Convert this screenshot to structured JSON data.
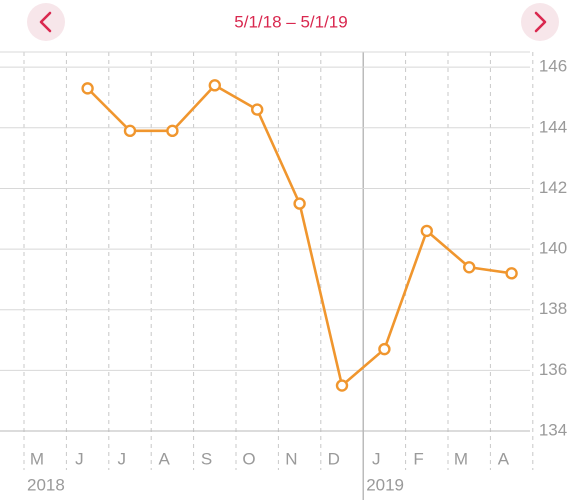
{
  "chart_data": {
    "type": "line",
    "title": "5/1/18 – 5/1/19",
    "categories": [
      "M",
      "J",
      "J",
      "A",
      "S",
      "O",
      "N",
      "D",
      "J",
      "F",
      "M",
      "A"
    ],
    "year_labels": [
      "2018",
      "2019"
    ],
    "series": [
      {
        "color": "#f0962e",
        "values": [
          null,
          145.3,
          143.9,
          143.9,
          145.4,
          144.6,
          141.5,
          135.5,
          136.7,
          140.6,
          139.4,
          139.2
        ]
      }
    ],
    "ylim": [
      134,
      146.5
    ],
    "yticks": [
      134,
      136,
      138,
      140,
      142,
      144,
      146
    ],
    "grid": true
  }
}
